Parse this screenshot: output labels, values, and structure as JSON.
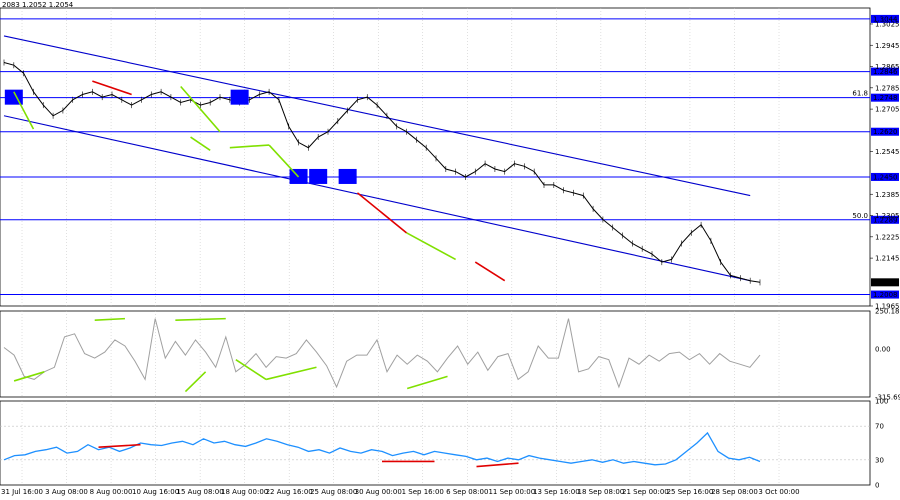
{
  "header": {
    "ohlc_text": "2083 1.2052 1.2054"
  },
  "colors": {
    "level_line": "#0000ff",
    "channel_line": "#0000cc",
    "box": "#0000ff",
    "price": "#000000",
    "bull_divergence": "#80e000",
    "bear_divergence": "#e00000",
    "cci": "#a0a0a0",
    "rsi": "#1e90ff",
    "current_price_bg": "#000000",
    "level_label_bg": "#0000ff"
  },
  "chart_data": [
    {
      "type": "line",
      "panel": "price",
      "ylim": [
        1.1965,
        1.3085
      ],
      "right_axis_ticks": [
        "1.3025",
        "1.2945",
        "1.2865",
        "1.2785",
        "1.2705",
        "1.2545",
        "1.2385",
        "1.2305",
        "1.2225",
        "1.2145",
        "1.1965"
      ],
      "levels": [
        {
          "value": 1.3044,
          "label": "1.3044",
          "note": ""
        },
        {
          "value": 1.2846,
          "label": "1.2846",
          "note": ""
        },
        {
          "value": 1.2748,
          "label": "1.2748",
          "note": "61.8"
        },
        {
          "value": 1.262,
          "label": "1.2620",
          "note": ""
        },
        {
          "value": 1.245,
          "label": "1.2450",
          "note": ""
        },
        {
          "value": 1.2289,
          "label": "1.2289",
          "note": "50.0"
        },
        {
          "value": 1.2008,
          "label": "1.2008",
          "note": ""
        }
      ],
      "current_price": {
        "value": 1.2054,
        "label": "1.2054"
      },
      "x_ticks": [
        "31 Jul 16:00",
        "3 Aug 08:00",
        "8 Aug 00:00",
        "10 Aug 16:00",
        "15 Aug 08:00",
        "18 Aug 00:00",
        "22 Aug 16:00",
        "25 Aug 08:00",
        "30 Aug 00:00",
        "1 Sep 16:00",
        "6 Sep 08:00",
        "11 Sep 00:00",
        "13 Sep 16:00",
        "18 Sep 08:00",
        "21 Sep 00:00",
        "25 Sep 16:00",
        "28 Sep 08:00",
        "3 Oct 00:00"
      ],
      "series": [
        {
          "name": "",
          "values": [
            1.288,
            1.287,
            1.284,
            1.277,
            1.272,
            1.268,
            1.27,
            1.274,
            1.276,
            1.277,
            1.275,
            1.276,
            1.274,
            1.272,
            1.274,
            1.276,
            1.277,
            1.275,
            1.273,
            1.274,
            1.272,
            1.273,
            1.275,
            1.274,
            1.273,
            1.274,
            1.276,
            1.277,
            1.274,
            1.264,
            1.258,
            1.256,
            1.26,
            1.262,
            1.266,
            1.27,
            1.274,
            1.275,
            1.272,
            1.268,
            1.264,
            1.262,
            1.259,
            1.256,
            1.252,
            1.248,
            1.247,
            1.245,
            1.247,
            1.25,
            1.248,
            1.247,
            1.25,
            1.249,
            1.247,
            1.242,
            1.242,
            1.24,
            1.239,
            1.238,
            1.233,
            1.229,
            1.226,
            1.223,
            1.22,
            1.218,
            1.216,
            1.213,
            1.214,
            1.22,
            1.224,
            1.227,
            1.221,
            1.213,
            1.208,
            1.207,
            1.206,
            1.2054
          ]
        }
      ],
      "channel": [
        {
          "from": [
            0,
            1.298
          ],
          "to": [
            76,
            1.238
          ]
        },
        {
          "from": [
            0,
            1.268
          ],
          "to": [
            76,
            1.206
          ]
        }
      ],
      "boxes": [
        {
          "x": 1,
          "y": 1.2748
        },
        {
          "x": 24,
          "y": 1.2748
        },
        {
          "x": 30,
          "y": 1.245
        },
        {
          "x": 32,
          "y": 1.245
        },
        {
          "x": 35,
          "y": 1.245
        }
      ],
      "divergence_lines": [
        {
          "kind": "bull",
          "from": [
            1,
            1.277
          ],
          "to": [
            3,
            1.263
          ]
        },
        {
          "kind": "bear",
          "from": [
            9,
            1.281
          ],
          "to": [
            13,
            1.276
          ]
        },
        {
          "kind": "bull",
          "from": [
            18,
            1.279
          ],
          "to": [
            22,
            1.262
          ]
        },
        {
          "kind": "bull",
          "from": [
            19,
            1.26
          ],
          "to": [
            21,
            1.255
          ]
        },
        {
          "kind": "bull",
          "from": [
            23,
            1.256
          ],
          "to": [
            27,
            1.257
          ]
        },
        {
          "kind": "bull",
          "from": [
            27,
            1.257
          ],
          "to": [
            30,
            1.245
          ]
        },
        {
          "kind": "bear",
          "from": [
            36,
            1.239
          ],
          "to": [
            41,
            1.224
          ]
        },
        {
          "kind": "bull",
          "from": [
            41,
            1.224
          ],
          "to": [
            46,
            1.214
          ]
        },
        {
          "kind": "bear",
          "from": [
            48,
            1.213
          ],
          "to": [
            51,
            1.206
          ]
        }
      ]
    },
    {
      "type": "line",
      "panel": "cci",
      "ylim": [
        -315.698,
        250.1868
      ],
      "ticks": [
        "250.1868",
        "0.00",
        "-315.698"
      ],
      "series": [
        {
          "name": "",
          "values": [
            10,
            -40,
            -180,
            -200,
            -150,
            -120,
            80,
            100,
            -30,
            -60,
            -20,
            60,
            20,
            -80,
            -200,
            200,
            -60,
            50,
            -40,
            60,
            -20,
            -120,
            80,
            -150,
            -100,
            -30,
            -120,
            -50,
            -60,
            -30,
            60,
            -20,
            -110,
            -250,
            -80,
            -40,
            -40,
            60,
            -150,
            -40,
            -100,
            -40,
            -80,
            -150,
            -60,
            20,
            -100,
            -20,
            -140,
            -50,
            -30,
            -200,
            -150,
            20,
            -60,
            -60,
            200,
            -150,
            -130,
            -50,
            -70,
            -250,
            -60,
            -100,
            -40,
            -80,
            -30,
            -20,
            -70,
            -30,
            -100,
            -30,
            -80,
            -100,
            -120,
            -40
          ]
        }
      ],
      "divergence_lines": [
        {
          "kind": "bull",
          "from": [
            1,
            -210
          ],
          "to": [
            4,
            -150
          ]
        },
        {
          "kind": "bull",
          "from": [
            9,
            190
          ],
          "to": [
            12,
            200
          ]
        },
        {
          "kind": "bull",
          "from": [
            17,
            190
          ],
          "to": [
            22,
            200
          ]
        },
        {
          "kind": "bull",
          "from": [
            18,
            -280
          ],
          "to": [
            20,
            -150
          ]
        },
        {
          "kind": "bull",
          "from": [
            23,
            -70
          ],
          "to": [
            26,
            -200
          ]
        },
        {
          "kind": "bull",
          "from": [
            26,
            -200
          ],
          "to": [
            31,
            -120
          ]
        },
        {
          "kind": "bull",
          "from": [
            40,
            -260
          ],
          "to": [
            44,
            -180
          ]
        }
      ]
    },
    {
      "type": "line",
      "panel": "rsi",
      "ylim": [
        0,
        100
      ],
      "ticks": [
        "100",
        "70",
        "30",
        "0"
      ],
      "series": [
        {
          "name": "",
          "values": [
            30,
            35,
            36,
            40,
            42,
            45,
            38,
            40,
            48,
            42,
            45,
            40,
            44,
            50,
            48,
            47,
            50,
            52,
            48,
            55,
            50,
            52,
            48,
            46,
            50,
            55,
            52,
            48,
            45,
            40,
            42,
            38,
            44,
            40,
            38,
            42,
            40,
            35,
            38,
            40,
            36,
            40,
            38,
            36,
            34,
            30,
            32,
            28,
            32,
            30,
            35,
            32,
            30,
            28,
            26,
            28,
            30,
            27,
            30,
            26,
            28,
            26,
            24,
            25,
            30,
            40,
            50,
            62,
            40,
            32,
            30,
            33,
            28
          ]
        }
      ],
      "divergence_lines": [
        {
          "kind": "bear",
          "from": [
            9,
            45
          ],
          "to": [
            13,
            48
          ]
        },
        {
          "kind": "bear",
          "from": [
            36,
            28
          ],
          "to": [
            41,
            28
          ]
        },
        {
          "kind": "bear",
          "from": [
            45,
            22
          ],
          "to": [
            49,
            26
          ]
        }
      ]
    }
  ]
}
